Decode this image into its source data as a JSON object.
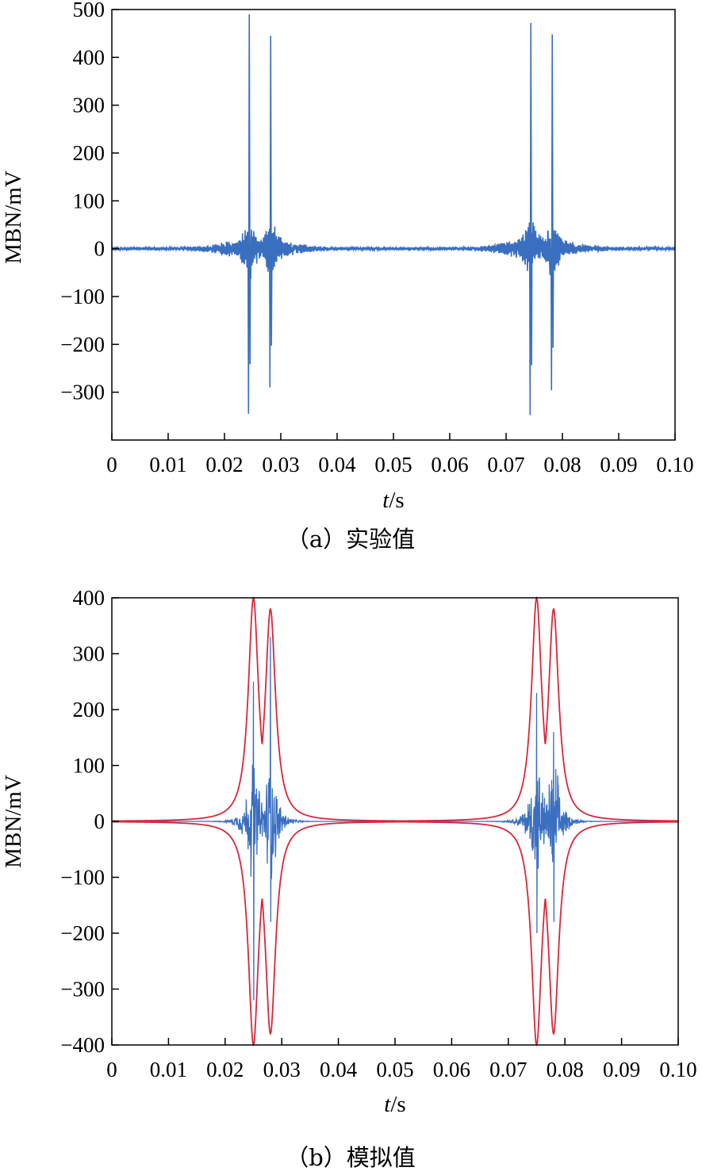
{
  "colors": {
    "signal": "#3a6fc0",
    "envelope": "#d8283a",
    "axis": "#000000"
  },
  "chart_data": [
    {
      "type": "line",
      "caption": "（a）实验值",
      "xlabel_italic": "t",
      "xlabel_unit": "/s",
      "ylabel": "MBN/mV",
      "xlim": [
        0,
        0.1
      ],
      "ylim": [
        -400,
        500
      ],
      "xticks": [
        0,
        0.01,
        0.02,
        0.03,
        0.04,
        0.05,
        0.06,
        0.07,
        0.08,
        0.09,
        0.1
      ],
      "xtick_labels": [
        "0",
        "0.01",
        "0.02",
        "0.03",
        "0.04",
        "0.05",
        "0.06",
        "0.07",
        "0.08",
        "0.09",
        "0.10"
      ],
      "yticks": [
        500,
        400,
        300,
        200,
        100,
        0,
        -100,
        -200,
        -300
      ],
      "ytick_labels": [
        "500",
        "400",
        "300",
        "200",
        "100",
        "0",
        "−100",
        "−200",
        "−300"
      ],
      "series": [
        {
          "color": "#3a6fc0",
          "bursts": [
            {
              "center": 0.0244,
              "pos_peak": 490,
              "neg_peak": -345
            },
            {
              "center": 0.0282,
              "pos_peak": 445,
              "neg_peak": -290
            },
            {
              "center": 0.0744,
              "pos_peak": 472,
              "neg_peak": -348
            },
            {
              "center": 0.0782,
              "pos_peak": 448,
              "neg_peak": -296
            }
          ],
          "activity_regions": [
            [
              0.015,
              0.037
            ],
            [
              0.065,
              0.087
            ]
          ]
        }
      ]
    },
    {
      "type": "line",
      "caption": "（b）模拟值",
      "xlabel_italic": "t",
      "xlabel_unit": "/s",
      "ylabel": "MBN/mV",
      "xlim": [
        0,
        0.1
      ],
      "ylim": [
        -400,
        400
      ],
      "xticks": [
        0,
        0.01,
        0.02,
        0.03,
        0.04,
        0.05,
        0.06,
        0.07,
        0.08,
        0.09,
        0.1
      ],
      "xtick_labels": [
        "0",
        "0.01",
        "0.02",
        "0.03",
        "0.04",
        "0.05",
        "0.06",
        "0.07",
        "0.08",
        "0.09",
        "0.10"
      ],
      "yticks": [
        400,
        300,
        200,
        100,
        0,
        -100,
        -200,
        -300,
        -400
      ],
      "ytick_labels": [
        "400",
        "300",
        "200",
        "100",
        "0",
        "−100",
        "−200",
        "−300",
        "−400"
      ],
      "series": [
        {
          "color": "#3a6fc0",
          "bursts": [
            {
              "center": 0.025,
              "pos_peak": 250,
              "neg_peak": -320
            },
            {
              "center": 0.028,
              "pos_peak": 330,
              "neg_peak": -180
            },
            {
              "center": 0.075,
              "pos_peak": 230,
              "neg_peak": -200
            },
            {
              "center": 0.078,
              "pos_peak": 160,
              "neg_peak": -180
            }
          ]
        },
        {
          "color": "#d8283a",
          "envelope": true,
          "peaks": [
            {
              "center": 0.025,
              "amplitude": 400
            },
            {
              "center": 0.028,
              "amplitude": 380
            },
            {
              "center": 0.075,
              "amplitude": 400
            },
            {
              "center": 0.078,
              "amplitude": 380
            }
          ]
        }
      ]
    }
  ]
}
